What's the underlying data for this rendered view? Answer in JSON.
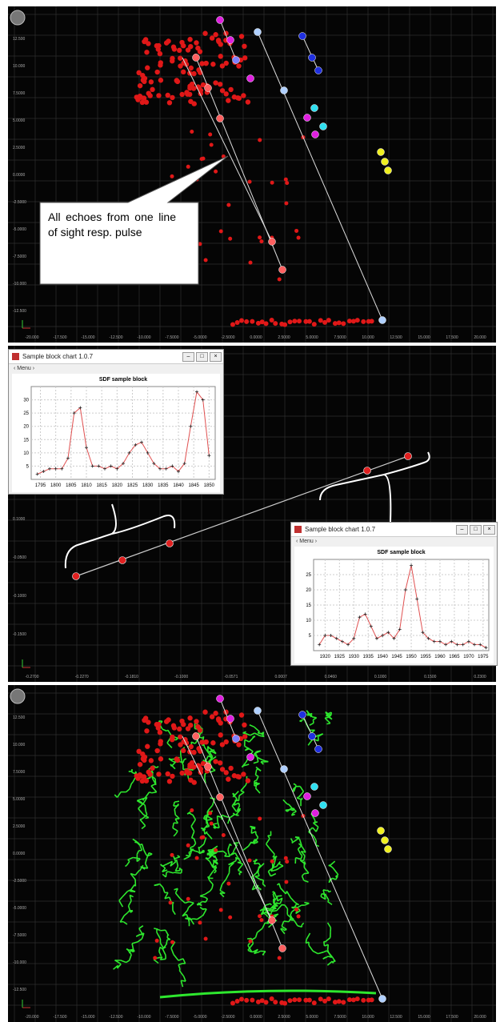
{
  "panels": [
    {
      "y_labels": [
        "12.500",
        "10.000",
        "7.5000",
        "5.0000",
        "2.5000",
        "0.0000",
        "-2.5000",
        "-5.0000",
        "-7.5000",
        "-10.000",
        "-12.500"
      ],
      "x_labels": [
        "-20.000",
        "-17.500",
        "-15.000",
        "-12.500",
        "-10.000",
        "-7.5000",
        "-5.0000",
        "-2.5000",
        "0.0000",
        "2.5000",
        "5.0000",
        "7.5000",
        "10.000",
        "12.500",
        "15.000",
        "17.500",
        "20.000"
      ],
      "callout": "All echoes from one line of sight resp. pulse"
    },
    {
      "y_labels": [
        "0.1000",
        "-0.0500",
        "-0.1000",
        "-0.1500"
      ],
      "x_labels": [
        "-0.2700",
        "-0.2270",
        "-0.1810",
        "-0.1000",
        "-0.0571",
        "0.0007",
        "0.0460",
        "0.1000",
        "0.1500",
        "0.2300"
      ],
      "windows": [
        {
          "title": "Sample block chart 1.0.7",
          "menu": "Menu",
          "chart": {
            "type": "line",
            "title": "SDF sample block",
            "x": [
              1794,
              1796,
              1798,
              1800,
              1802,
              1804,
              1806,
              1808,
              1810,
              1812,
              1814,
              1816,
              1818,
              1820,
              1822,
              1824,
              1826,
              1828,
              1830,
              1832,
              1834,
              1836,
              1838,
              1840,
              1842,
              1844,
              1846,
              1848,
              1850
            ],
            "values": [
              2,
              3,
              4,
              4,
              4,
              8,
              25,
              27,
              12,
              5,
              5,
              4,
              5,
              4,
              6,
              10,
              13,
              14,
              10,
              6,
              4,
              4,
              5,
              3,
              6,
              20,
              33,
              30,
              9
            ],
            "color": "#e05050",
            "xlim": [
              1792,
              1852
            ],
            "ylim": [
              0,
              35
            ],
            "xticks": [
              1795,
              1800,
              1805,
              1810,
              1815,
              1820,
              1825,
              1830,
              1835,
              1840,
              1845,
              1850
            ],
            "yticks": [
              5,
              10,
              15,
              20,
              25,
              30
            ],
            "grid": true
          }
        },
        {
          "title": "Sample block chart 1.0.7",
          "menu": "Menu",
          "chart": {
            "type": "line",
            "title": "SDF sample block",
            "x": [
              1918,
              1920,
              1922,
              1924,
              1926,
              1928,
              1930,
              1932,
              1934,
              1936,
              1938,
              1940,
              1942,
              1944,
              1946,
              1948,
              1950,
              1952,
              1954,
              1956,
              1958,
              1960,
              1962,
              1964,
              1966,
              1968,
              1970,
              1972,
              1974,
              1976
            ],
            "values": [
              2,
              5,
              5,
              4,
              3,
              2,
              4,
              11,
              12,
              8,
              4,
              5,
              6,
              4,
              7,
              20,
              28,
              17,
              6,
              4,
              3,
              3,
              2,
              3,
              2,
              2,
              3,
              2,
              2,
              1
            ],
            "color": "#e05050",
            "xlim": [
              1916,
              1977
            ],
            "ylim": [
              0,
              30
            ],
            "xticks": [
              1920,
              1925,
              1930,
              1935,
              1940,
              1945,
              1950,
              1955,
              1960,
              1965,
              1970,
              1975
            ],
            "yticks": [
              5,
              10,
              15,
              20,
              25
            ],
            "grid": true
          }
        }
      ]
    },
    {
      "y_labels": [
        "12.500",
        "10.000",
        "7.5000",
        "5.0000",
        "2.5000",
        "0.0000",
        "-2.5000",
        "-5.0000",
        "-7.5000",
        "-10.000",
        "-12.500"
      ],
      "x_labels": [
        "-20.000",
        "-17.500",
        "-15.000",
        "-12.500",
        "-10.000",
        "-7.5000",
        "-5.0000",
        "-2.5000",
        "0.0000",
        "2.5000",
        "5.0000",
        "7.5000",
        "10.000",
        "12.500",
        "15.000",
        "17.500",
        "20.000"
      ]
    }
  ]
}
